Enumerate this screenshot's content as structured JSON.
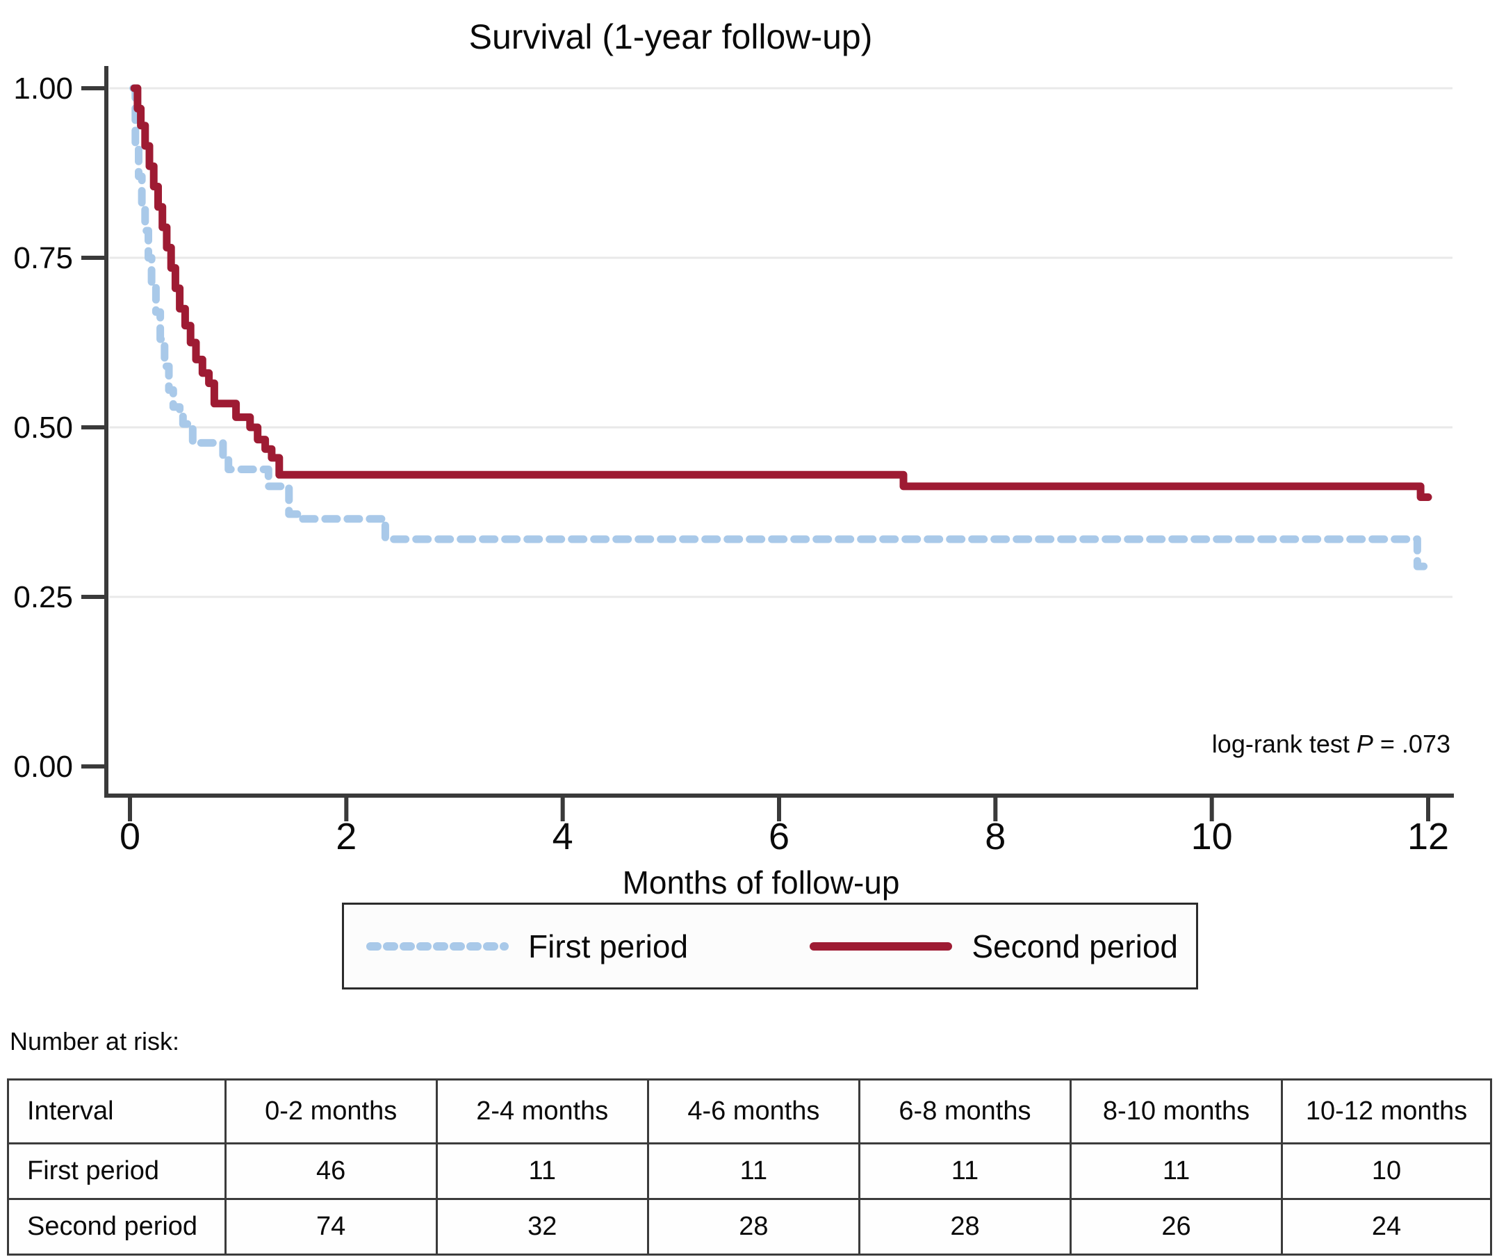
{
  "title": "Survival (1-year follow-up)",
  "annotation": {
    "prefix": "log-rank test ",
    "p_symbol": "P",
    "suffix": " = .073"
  },
  "x_axis_title": "Months of follow-up",
  "colors": {
    "first_period": "#a9c9e9",
    "second_period": "#9e1b33",
    "axis": "#3a3a3a",
    "gridline": "#e9e9e9"
  },
  "legend": {
    "items": [
      {
        "label": "First period",
        "color": "#a9c9e9",
        "dashed": true
      },
      {
        "label": "Second period",
        "color": "#9e1b33",
        "dashed": false
      }
    ]
  },
  "risk_table": {
    "caption": "Number at risk:",
    "headers": [
      "Interval",
      "0-2 months",
      "2-4 months",
      "4-6 months",
      "6-8 months",
      "8-10 months",
      "10-12 months"
    ],
    "rows": [
      {
        "label": "First period",
        "values": [
          "46",
          "11",
          "11",
          "11",
          "11",
          "10"
        ]
      },
      {
        "label": "Second period",
        "values": [
          "74",
          "32",
          "28",
          "28",
          "26",
          "24"
        ]
      }
    ]
  },
  "chart_data": {
    "type": "line",
    "subtype": "kaplan-meier-step",
    "title": "Survival (1-year follow-up)",
    "xlabel": "Months of follow-up",
    "ylabel": "",
    "xlim": [
      0,
      12
    ],
    "ylim": [
      0,
      1
    ],
    "grid": "horizontal",
    "legend_position": "bottom",
    "annotation": "log-rank test P = .073",
    "xticks": [
      {
        "v": 0,
        "label": "0"
      },
      {
        "v": 2,
        "label": "2"
      },
      {
        "v": 4,
        "label": "4"
      },
      {
        "v": 6,
        "label": "6"
      },
      {
        "v": 8,
        "label": "8"
      },
      {
        "v": 10,
        "label": "10"
      },
      {
        "v": 12,
        "label": "12"
      }
    ],
    "yticks": [
      {
        "v": 0,
        "label": "0.00"
      },
      {
        "v": 0.25,
        "label": "0.25"
      },
      {
        "v": 0.5,
        "label": "0.50"
      },
      {
        "v": 0.75,
        "label": "0.75"
      },
      {
        "v": 1,
        "label": "1.00"
      }
    ],
    "series": [
      {
        "name": "First period",
        "color": "#a9c9e9",
        "style": "dashed",
        "stroke_width": 11,
        "points": [
          [
            0.03,
            1.0
          ],
          [
            0.05,
            0.91
          ],
          [
            0.08,
            0.87
          ],
          [
            0.11,
            0.83
          ],
          [
            0.14,
            0.79
          ],
          [
            0.17,
            0.75
          ],
          [
            0.2,
            0.71
          ],
          [
            0.24,
            0.67
          ],
          [
            0.28,
            0.63
          ],
          [
            0.32,
            0.59
          ],
          [
            0.36,
            0.555
          ],
          [
            0.4,
            0.53
          ],
          [
            0.46,
            0.52
          ],
          [
            0.49,
            0.505
          ],
          [
            0.58,
            0.477
          ],
          [
            0.86,
            0.457
          ],
          [
            0.91,
            0.438
          ],
          [
            1.28,
            0.413
          ],
          [
            1.47,
            0.372
          ],
          [
            1.56,
            0.365
          ],
          [
            2.36,
            0.335
          ],
          [
            11.9,
            0.295
          ],
          [
            12.0,
            0.295
          ]
        ]
      },
      {
        "name": "Second period",
        "color": "#9e1b33",
        "style": "solid",
        "stroke_width": 11,
        "points": [
          [
            0.04,
            1.0
          ],
          [
            0.07,
            0.97
          ],
          [
            0.1,
            0.945
          ],
          [
            0.14,
            0.915
          ],
          [
            0.18,
            0.885
          ],
          [
            0.22,
            0.855
          ],
          [
            0.26,
            0.825
          ],
          [
            0.3,
            0.795
          ],
          [
            0.34,
            0.765
          ],
          [
            0.38,
            0.735
          ],
          [
            0.42,
            0.705
          ],
          [
            0.46,
            0.675
          ],
          [
            0.51,
            0.65
          ],
          [
            0.56,
            0.625
          ],
          [
            0.61,
            0.6
          ],
          [
            0.67,
            0.58
          ],
          [
            0.73,
            0.565
          ],
          [
            0.78,
            0.535
          ],
          [
            0.98,
            0.515
          ],
          [
            1.11,
            0.5
          ],
          [
            1.18,
            0.482
          ],
          [
            1.25,
            0.468
          ],
          [
            1.31,
            0.455
          ],
          [
            1.38,
            0.43
          ],
          [
            7.15,
            0.413
          ],
          [
            11.93,
            0.397
          ],
          [
            12.0,
            0.397
          ]
        ]
      }
    ]
  }
}
